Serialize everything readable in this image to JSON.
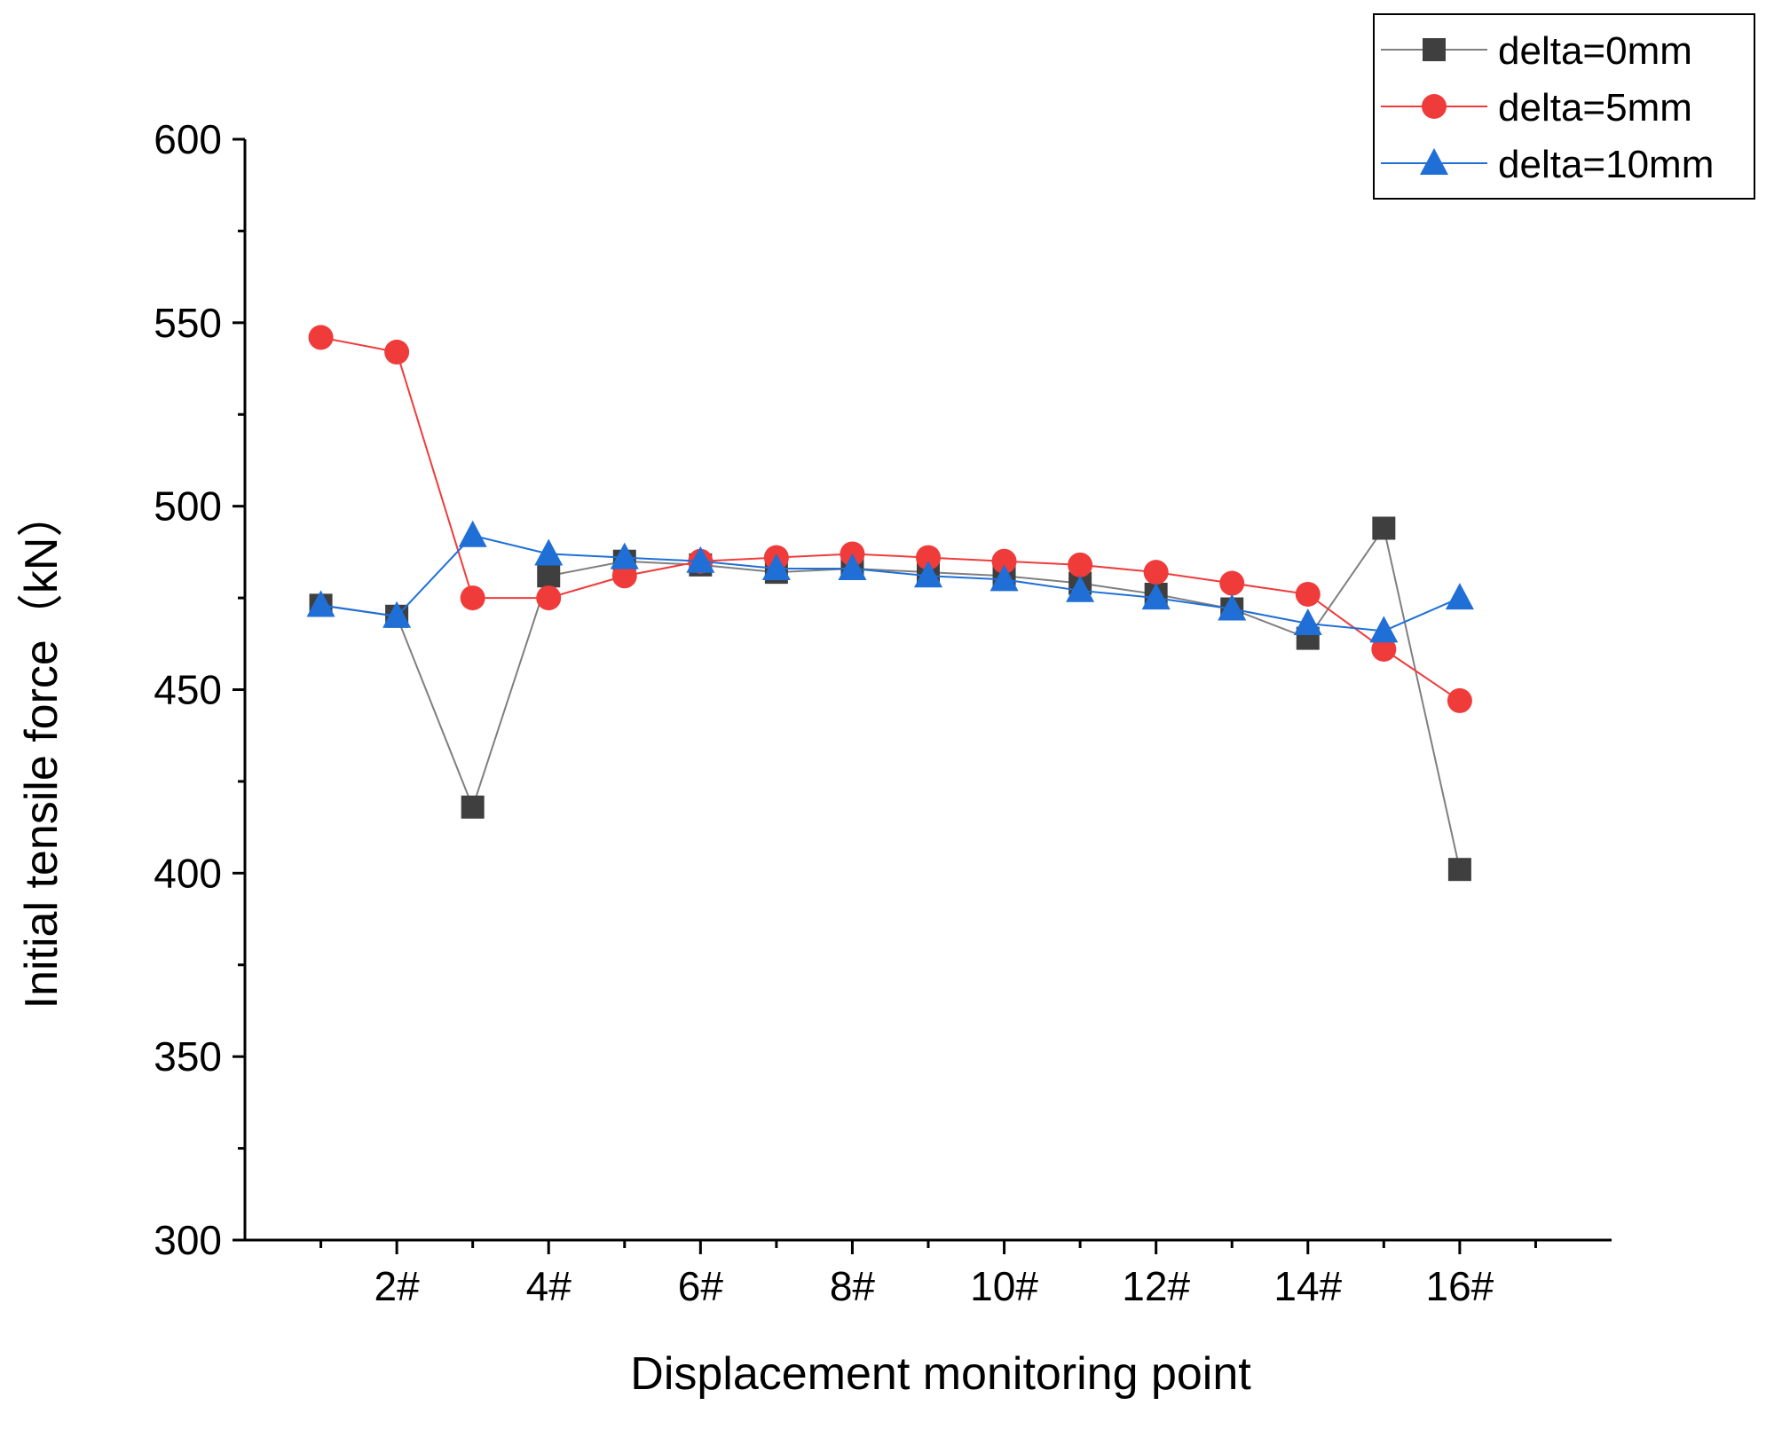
{
  "chart_data": {
    "type": "line",
    "title": "",
    "xlabel": "Displacement monitoring point",
    "ylabel": "Initial tensile force（kN）",
    "x": [
      1,
      2,
      3,
      4,
      5,
      6,
      7,
      8,
      9,
      10,
      11,
      12,
      13,
      14,
      15,
      16
    ],
    "xlim": [
      0,
      18
    ],
    "ylim": [
      300,
      600
    ],
    "x_ticks": [
      {
        "value": 2,
        "label": "2#"
      },
      {
        "value": 4,
        "label": "4#"
      },
      {
        "value": 6,
        "label": "6#"
      },
      {
        "value": 8,
        "label": "8#"
      },
      {
        "value": 10,
        "label": "10#"
      },
      {
        "value": 12,
        "label": "12#"
      },
      {
        "value": 14,
        "label": "14#"
      },
      {
        "value": 16,
        "label": "16#"
      }
    ],
    "y_ticks": [
      {
        "value": 300,
        "label": "300"
      },
      {
        "value": 350,
        "label": "350"
      },
      {
        "value": 400,
        "label": "400"
      },
      {
        "value": 450,
        "label": "450"
      },
      {
        "value": 500,
        "label": "500"
      },
      {
        "value": 550,
        "label": "550"
      },
      {
        "value": 600,
        "label": "600"
      }
    ],
    "grid": false,
    "legend_position": "top-right",
    "series": [
      {
        "name": "delta=0mm",
        "color": "#3f3f3f",
        "line_color": "#7f7f7f",
        "marker": "square",
        "values": [
          473,
          470,
          418,
          481,
          485,
          484,
          482,
          483,
          482,
          481,
          479,
          476,
          472,
          464,
          494,
          401
        ]
      },
      {
        "name": "delta=5mm",
        "color": "#f03b3b",
        "line_color": "#f03b3b",
        "marker": "circle",
        "values": [
          546,
          542,
          475,
          475,
          481,
          485,
          486,
          487,
          486,
          485,
          484,
          482,
          479,
          476,
          461,
          447
        ]
      },
      {
        "name": "delta=10mm",
        "color": "#1f6fd6",
        "line_color": "#1f6fd6",
        "marker": "triangle",
        "values": [
          473,
          470,
          492,
          487,
          486,
          485,
          483,
          483,
          481,
          480,
          477,
          475,
          472,
          468,
          466,
          475
        ]
      }
    ]
  }
}
